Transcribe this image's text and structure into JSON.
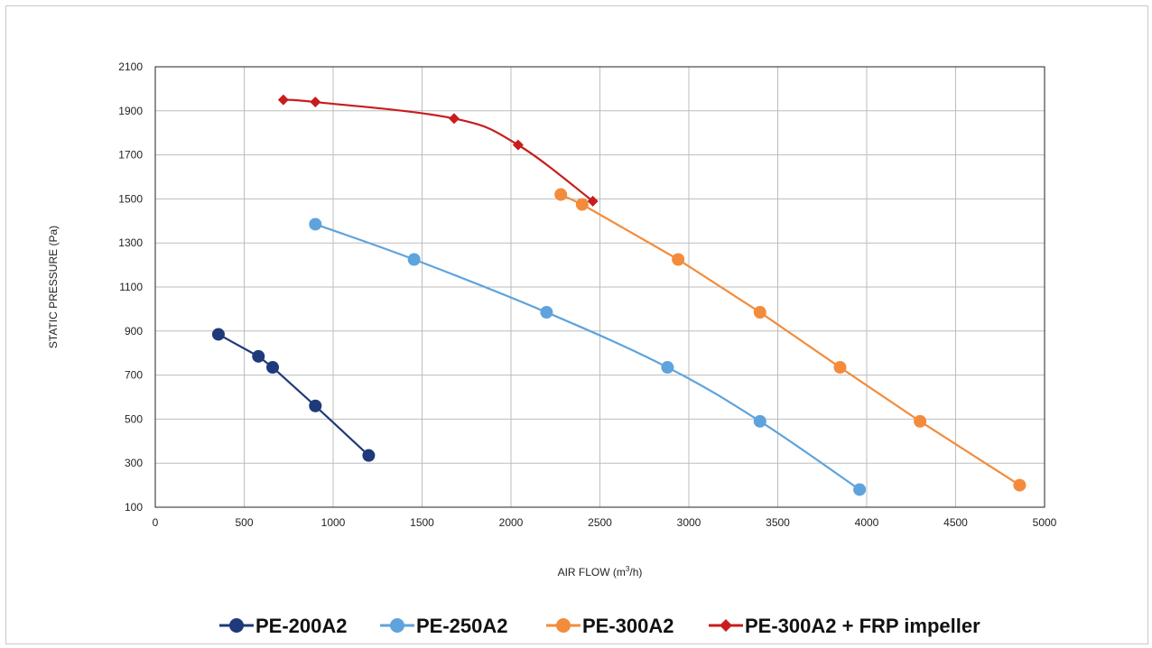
{
  "chart_data": {
    "type": "line",
    "title": "",
    "xlabel": "AIR FLOW (m",
    "xlabel_sup": "3",
    "xlabel_end": "/h)",
    "ylabel": "STATIC PRESSURE  (Pa)",
    "xlim": [
      0,
      5000
    ],
    "ylim": [
      100,
      2100
    ],
    "xticks": [
      0,
      500,
      1000,
      1500,
      2000,
      2500,
      3000,
      3500,
      4000,
      4500,
      5000
    ],
    "yticks": [
      100,
      300,
      500,
      700,
      900,
      1100,
      1300,
      1500,
      1700,
      1900,
      2100
    ],
    "grid": true,
    "legend_position": "bottom",
    "series": [
      {
        "name": "PE-200A2",
        "color": "#1f3a7a",
        "marker": "circle",
        "smooth": false,
        "x": [
          355,
          580,
          660,
          900,
          1200
        ],
        "y": [
          885,
          785,
          735,
          560,
          335
        ]
      },
      {
        "name": "PE-250A2",
        "color": "#5fa3dc",
        "marker": "circle",
        "smooth": true,
        "x": [
          900,
          1455,
          2200,
          2880,
          3400,
          3960
        ],
        "y": [
          1385,
          1225,
          985,
          735,
          490,
          180
        ]
      },
      {
        "name": "PE-300A2",
        "color": "#f28c3c",
        "marker": "circle",
        "smooth": false,
        "x": [
          2280,
          2400,
          2940,
          3400,
          3850,
          4300,
          4860
        ],
        "y": [
          1520,
          1475,
          1225,
          985,
          735,
          490,
          200
        ]
      },
      {
        "name": "PE-300A2 + FRP impeller",
        "color": "#c81d1d",
        "marker": "diamond",
        "smooth": true,
        "x": [
          720,
          900,
          1680,
          2040,
          2460
        ],
        "y": [
          1950,
          1940,
          1865,
          1745,
          1490
        ]
      }
    ]
  }
}
